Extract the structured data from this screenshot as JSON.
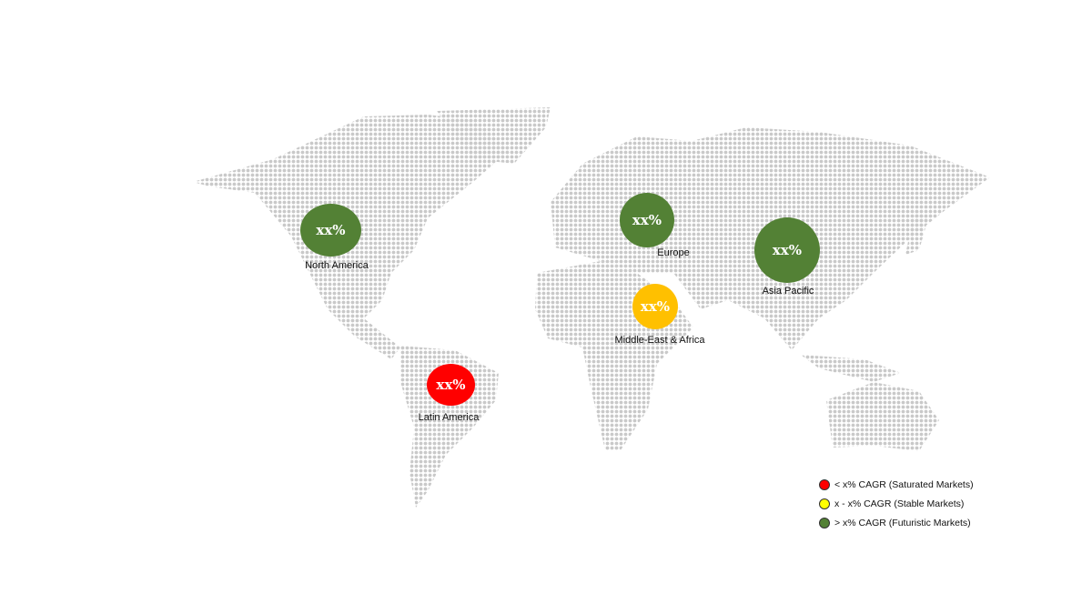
{
  "regions": [
    {
      "name": "North America",
      "value": "xx%",
      "color": "#538135"
    },
    {
      "name": "Europe",
      "value": "xx%",
      "color": "#538135"
    },
    {
      "name": "Asia Pacific",
      "value": "xx%",
      "color": "#538135"
    },
    {
      "name": "Middle-East & Africa",
      "value": "xx%",
      "color": "#FFC000"
    },
    {
      "name": "Latin America",
      "value": "xx%",
      "color": "#FF0000"
    }
  ],
  "legend": [
    {
      "label": "< x% CAGR (Saturated Markets)",
      "color": "#FF0000"
    },
    {
      "label": "x - x% CAGR (Stable Markets)",
      "color": "#FFFF00"
    },
    {
      "label": "> x% CAGR (Futuristic Markets)",
      "color": "#538135"
    }
  ]
}
